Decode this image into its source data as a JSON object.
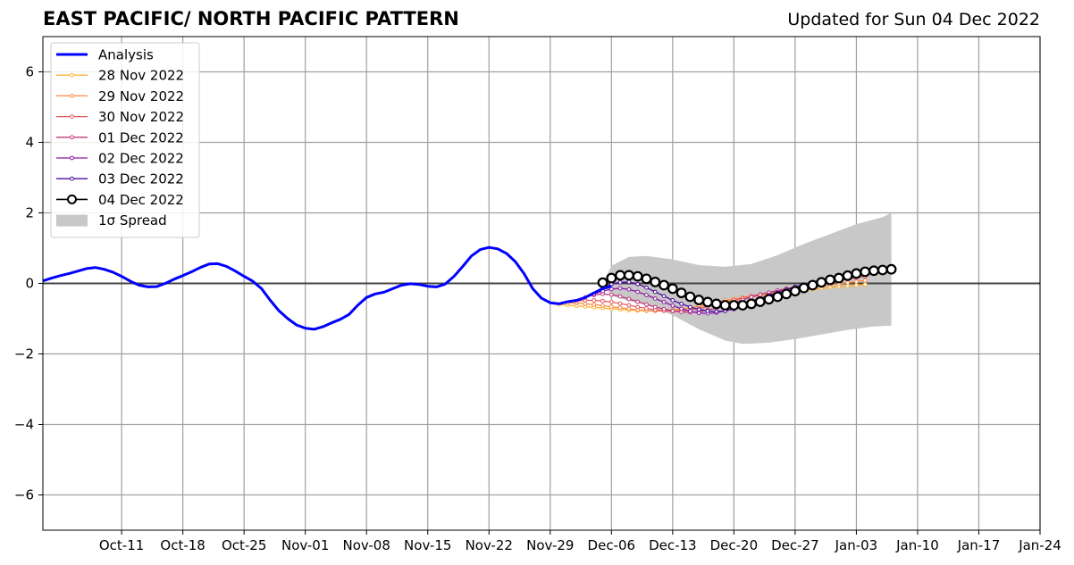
{
  "title": "EAST PACIFIC/ NORTH PACIFIC PATTERN",
  "subtitle": "Updated for Sun 04 Dec 2022",
  "chart_data": {
    "type": "line",
    "title": "EAST PACIFIC/ NORTH PACIFIC PATTERN",
    "subtitle": "Updated for Sun 04 Dec 2022",
    "xlabel": "",
    "ylabel": "",
    "x_axis": "date",
    "xlim": [
      "2022-10-02",
      "2023-01-24"
    ],
    "ylim": [
      -7,
      7
    ],
    "grid": true,
    "legend_position": "top-left",
    "x_ticks": [
      "2022-10-11",
      "2022-10-18",
      "2022-10-25",
      "2022-11-01",
      "2022-11-08",
      "2022-11-15",
      "2022-11-22",
      "2022-11-29",
      "2022-12-06",
      "2022-12-13",
      "2022-12-20",
      "2022-12-27",
      "2023-01-03",
      "2023-01-10",
      "2023-01-17",
      "2023-01-24"
    ],
    "x_tick_labels": [
      "Oct-11",
      "Oct-18",
      "Oct-25",
      "Nov-01",
      "Nov-08",
      "Nov-15",
      "Nov-22",
      "Nov-29",
      "Dec-06",
      "Dec-13",
      "Dec-20",
      "Dec-27",
      "Jan-03",
      "Jan-10",
      "Jan-17",
      "Jan-24"
    ],
    "y_ticks": [
      -6,
      -4,
      -2,
      0,
      2,
      4,
      6
    ],
    "y_tick_labels": [
      "−6",
      "−4",
      "−2",
      "0",
      "2",
      "4",
      "6"
    ],
    "analysis": {
      "name": "Analysis",
      "color": "#0000ff",
      "points": [
        [
          "2022-10-02",
          0.07
        ],
        [
          "2022-10-03",
          0.15
        ],
        [
          "2022-10-04",
          0.22
        ],
        [
          "2022-10-05",
          0.28
        ],
        [
          "2022-10-06",
          0.35
        ],
        [
          "2022-10-07",
          0.42
        ],
        [
          "2022-10-08",
          0.45
        ],
        [
          "2022-10-09",
          0.4
        ],
        [
          "2022-10-10",
          0.32
        ],
        [
          "2022-10-11",
          0.2
        ],
        [
          "2022-10-12",
          0.06
        ],
        [
          "2022-10-13",
          -0.05
        ],
        [
          "2022-10-14",
          -0.1
        ],
        [
          "2022-10-15",
          -0.09
        ],
        [
          "2022-10-16",
          0.0
        ],
        [
          "2022-10-17",
          0.12
        ],
        [
          "2022-10-18",
          0.22
        ],
        [
          "2022-10-19",
          0.33
        ],
        [
          "2022-10-20",
          0.45
        ],
        [
          "2022-10-21",
          0.55
        ],
        [
          "2022-10-22",
          0.56
        ],
        [
          "2022-10-23",
          0.48
        ],
        [
          "2022-10-24",
          0.35
        ],
        [
          "2022-10-25",
          0.2
        ],
        [
          "2022-10-26",
          0.06
        ],
        [
          "2022-10-27",
          -0.15
        ],
        [
          "2022-10-28",
          -0.48
        ],
        [
          "2022-10-29",
          -0.78
        ],
        [
          "2022-10-30",
          -1.0
        ],
        [
          "2022-10-31",
          -1.18
        ],
        [
          "2022-11-01",
          -1.27
        ],
        [
          "2022-11-02",
          -1.3
        ],
        [
          "2022-11-03",
          -1.23
        ],
        [
          "2022-11-04",
          -1.12
        ],
        [
          "2022-11-05",
          -1.02
        ],
        [
          "2022-11-06",
          -0.88
        ],
        [
          "2022-11-07",
          -0.62
        ],
        [
          "2022-11-08",
          -0.4
        ],
        [
          "2022-11-09",
          -0.3
        ],
        [
          "2022-11-10",
          -0.25
        ],
        [
          "2022-11-11",
          -0.15
        ],
        [
          "2022-11-12",
          -0.05
        ],
        [
          "2022-11-13",
          -0.01
        ],
        [
          "2022-11-14",
          -0.03
        ],
        [
          "2022-11-15",
          -0.08
        ],
        [
          "2022-11-16",
          -0.1
        ],
        [
          "2022-11-17",
          -0.02
        ],
        [
          "2022-11-18",
          0.2
        ],
        [
          "2022-11-19",
          0.48
        ],
        [
          "2022-11-20",
          0.78
        ],
        [
          "2022-11-21",
          0.96
        ],
        [
          "2022-11-22",
          1.02
        ],
        [
          "2022-11-23",
          0.98
        ],
        [
          "2022-11-24",
          0.85
        ],
        [
          "2022-11-25",
          0.62
        ],
        [
          "2022-11-26",
          0.28
        ],
        [
          "2022-11-27",
          -0.15
        ],
        [
          "2022-11-28",
          -0.42
        ],
        [
          "2022-11-29",
          -0.55
        ],
        [
          "2022-11-30",
          -0.58
        ],
        [
          "2022-12-01",
          -0.52
        ],
        [
          "2022-12-02",
          -0.48
        ],
        [
          "2022-12-03",
          -0.4
        ],
        [
          "2022-12-04",
          -0.27
        ],
        [
          "2022-12-05",
          -0.15
        ],
        [
          "2022-12-06",
          -0.08
        ]
      ]
    },
    "series": [
      {
        "name": "28 Nov 2022",
        "color": "#fdb332",
        "start": "2022-11-30",
        "values": [
          -0.6,
          -0.62,
          -0.64,
          -0.66,
          -0.68,
          -0.7,
          -0.72,
          -0.74,
          -0.76,
          -0.77,
          -0.78,
          -0.78,
          -0.77,
          -0.76,
          -0.73,
          -0.7,
          -0.65,
          -0.6,
          -0.55,
          -0.5,
          -0.46,
          -0.42,
          -0.38,
          -0.35,
          -0.32,
          -0.29,
          -0.26,
          -0.23,
          -0.2,
          -0.17,
          -0.14,
          -0.11,
          -0.09,
          -0.07,
          -0.05,
          -0.03
        ]
      },
      {
        "name": "29 Nov 2022",
        "color": "#f98a44",
        "start": "2022-12-01",
        "values": [
          -0.55,
          -0.56,
          -0.58,
          -0.6,
          -0.63,
          -0.66,
          -0.69,
          -0.72,
          -0.75,
          -0.77,
          -0.78,
          -0.78,
          -0.76,
          -0.73,
          -0.69,
          -0.64,
          -0.58,
          -0.53,
          -0.48,
          -0.44,
          -0.4,
          -0.36,
          -0.32,
          -0.28,
          -0.25,
          -0.21,
          -0.18,
          -0.14,
          -0.1,
          -0.07,
          -0.04,
          -0.01,
          0.02,
          0.05,
          0.08
        ]
      },
      {
        "name": "30 Nov 2022",
        "color": "#e4585e",
        "start": "2022-12-02",
        "values": [
          -0.5,
          -0.48,
          -0.48,
          -0.5,
          -0.53,
          -0.57,
          -0.62,
          -0.67,
          -0.71,
          -0.75,
          -0.78,
          -0.79,
          -0.78,
          -0.75,
          -0.71,
          -0.66,
          -0.6,
          -0.54,
          -0.48,
          -0.42,
          -0.36,
          -0.31,
          -0.26,
          -0.21,
          -0.17,
          -0.12,
          -0.08,
          -0.04,
          0.0,
          0.04,
          0.08,
          0.12,
          0.16,
          0.2
        ]
      },
      {
        "name": "01 Dec 2022",
        "color": "#c0387c",
        "start": "2022-12-03",
        "values": [
          -0.4,
          -0.33,
          -0.3,
          -0.32,
          -0.37,
          -0.44,
          -0.52,
          -0.6,
          -0.67,
          -0.73,
          -0.78,
          -0.81,
          -0.82,
          -0.8,
          -0.76,
          -0.7,
          -0.63,
          -0.55,
          -0.47,
          -0.39,
          -0.32,
          -0.26,
          -0.2,
          -0.15,
          -0.1,
          -0.05,
          0.0,
          0.05,
          0.09,
          0.13,
          0.17,
          0.21,
          0.25
        ]
      },
      {
        "name": "02 Dec 2022",
        "color": "#8a1aa2",
        "start": "2022-12-04",
        "values": [
          -0.3,
          -0.22,
          -0.16,
          -0.14,
          -0.17,
          -0.24,
          -0.33,
          -0.43,
          -0.53,
          -0.63,
          -0.72,
          -0.79,
          -0.84,
          -0.85,
          -0.83,
          -0.78,
          -0.7,
          -0.61,
          -0.51,
          -0.42,
          -0.33,
          -0.25,
          -0.18,
          -0.11,
          -0.05,
          0.0,
          0.05,
          0.1,
          0.15,
          0.2,
          0.25,
          0.3
        ]
      },
      {
        "name": "03 Dec 2022",
        "color": "#4b0c9e",
        "start": "2022-12-05",
        "values": [
          -0.12,
          -0.02,
          0.03,
          0.04,
          -0.02,
          -0.12,
          -0.24,
          -0.36,
          -0.48,
          -0.58,
          -0.67,
          -0.74,
          -0.78,
          -0.8,
          -0.78,
          -0.73,
          -0.65,
          -0.56,
          -0.46,
          -0.36,
          -0.27,
          -0.18,
          -0.1,
          -0.03,
          0.04,
          0.1,
          0.15,
          0.2,
          0.25,
          0.3,
          0.34
        ]
      },
      {
        "name": "04 Dec 2022",
        "color": "#000000",
        "start": "2022-12-05",
        "values": [
          0.02,
          0.15,
          0.23,
          0.23,
          0.2,
          0.13,
          0.04,
          -0.05,
          -0.15,
          -0.27,
          -0.38,
          -0.47,
          -0.53,
          -0.58,
          -0.62,
          -0.62,
          -0.62,
          -0.58,
          -0.52,
          -0.45,
          -0.38,
          -0.3,
          -0.22,
          -0.13,
          -0.05,
          0.03,
          0.1,
          0.15,
          0.22,
          0.28,
          0.33,
          0.36,
          0.38,
          0.4
        ]
      }
    ],
    "spread": {
      "name": "1σ Spread",
      "color": "#c8c8c8",
      "upper": [
        [
          "2022-12-05",
          0.0
        ],
        [
          "2022-12-06",
          0.5
        ],
        [
          "2022-12-08",
          0.75
        ],
        [
          "2022-12-10",
          0.78
        ],
        [
          "2022-12-13",
          0.68
        ],
        [
          "2022-12-16",
          0.52
        ],
        [
          "2022-12-19",
          0.47
        ],
        [
          "2022-12-22",
          0.55
        ],
        [
          "2022-12-25",
          0.8
        ],
        [
          "2022-12-28",
          1.12
        ],
        [
          "2022-12-31",
          1.4
        ],
        [
          "2023-01-03",
          1.68
        ],
        [
          "2023-01-06",
          1.88
        ],
        [
          "2023-01-07",
          2.0
        ]
      ],
      "lower": [
        [
          "2022-12-05",
          0.0
        ],
        [
          "2022-12-06",
          -0.35
        ],
        [
          "2022-12-08",
          -0.5
        ],
        [
          "2022-12-10",
          -0.6
        ],
        [
          "2022-12-13",
          -0.9
        ],
        [
          "2022-12-16",
          -1.3
        ],
        [
          "2022-12-19",
          -1.62
        ],
        [
          "2022-12-21",
          -1.72
        ],
        [
          "2022-12-24",
          -1.68
        ],
        [
          "2022-12-27",
          -1.58
        ],
        [
          "2022-12-30",
          -1.45
        ],
        [
          "2023-01-02",
          -1.32
        ],
        [
          "2023-01-05",
          -1.22
        ],
        [
          "2023-01-07",
          -1.2
        ]
      ]
    },
    "legend": [
      "Analysis",
      "28 Nov 2022",
      "29 Nov 2022",
      "30 Nov 2022",
      "01 Dec 2022",
      "02 Dec 2022",
      "03 Dec 2022",
      "04 Dec 2022",
      "1σ Spread"
    ]
  }
}
